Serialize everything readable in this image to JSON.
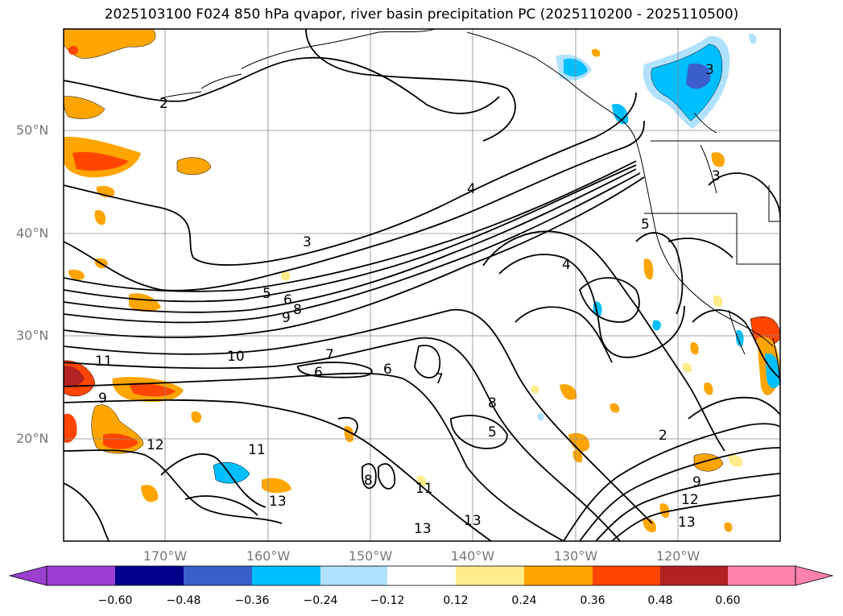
{
  "title": "2025103100 F024 850 hPa qvapor, river basin precipitation PC (2025110200 - 2025110500)",
  "map": {
    "lat_labels": [
      "50°N",
      "40°N",
      "30°N",
      "20°N"
    ],
    "lon_labels": [
      "170°W",
      "160°W",
      "150°W",
      "140°W",
      "130°W",
      "120°W"
    ],
    "contour_labels": [
      "2",
      "3",
      "3",
      "4",
      "4",
      "5",
      "5",
      "5",
      "6",
      "6",
      "7",
      "7",
      "8",
      "8",
      "9",
      "9",
      "9",
      "10",
      "11",
      "11",
      "11",
      "12",
      "12",
      "13",
      "13",
      "13",
      "13",
      "6",
      "8",
      "2",
      "3"
    ]
  },
  "colorbar": {
    "ticks": [
      "−0.60",
      "−0.48",
      "−0.36",
      "−0.24",
      "−0.12",
      "0.12",
      "0.24",
      "0.36",
      "0.48",
      "0.60"
    ],
    "colors": [
      "#9a3fd0",
      "#00008b",
      "#3a5fcd",
      "#00bfff",
      "#b0e2ff",
      "#ffffff",
      "#ffec8b",
      "#ffa500",
      "#ff4500",
      "#b22222",
      "#ff82ab"
    ]
  }
}
